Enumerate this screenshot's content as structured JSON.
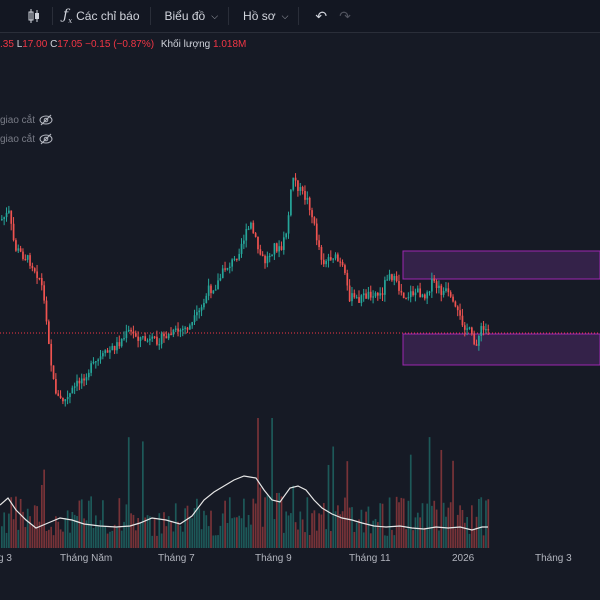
{
  "toolbar": {
    "indicators_label": "Các chỉ báo",
    "chart_label": "Biểu đồ",
    "layout_label": "Hồ sơ"
  },
  "legend": {
    "o_tail": ".35",
    "l_label": "L",
    "l_value": "17.00",
    "c_label": "C",
    "c_value": "17.05",
    "change": "−0.15 (−0.87%)",
    "volume_label": "Khối lượng",
    "volume_value": "1.018M"
  },
  "indicators": [
    {
      "label": "giao cắt",
      "icon": "eye-crossed-icon"
    },
    {
      "label": "giao cắt",
      "icon": "eye-crossed-icon"
    }
  ],
  "colors": {
    "up": "#26a69a",
    "down": "#ef5350",
    "zone_fill": "#3a2450",
    "zone_border": "#9c27b0",
    "price_line": "#f23645",
    "volume_ma": "#e6e6e6"
  },
  "x_axis": {
    "labels": [
      "g 3",
      "Tháng Năm",
      "Tháng 7",
      "Tháng 9",
      "Tháng 11",
      "2026",
      "Tháng 3"
    ]
  },
  "chart_data": {
    "type": "candlestick",
    "current_price": 17.05,
    "demand_zone_lower": true,
    "supply_zone_upper": true
  }
}
